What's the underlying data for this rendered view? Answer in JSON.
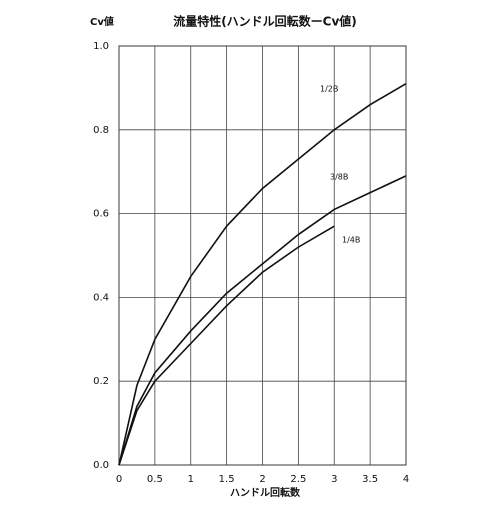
{
  "chart_data": {
    "type": "line",
    "title": "流量特性(ハンドル回転数ーCv値)",
    "y_label": "Cv値",
    "x_label": "ハンドル回転数",
    "x": [
      0,
      0.25,
      0.5,
      1,
      1.5,
      2,
      2.5,
      3,
      3.5,
      4
    ],
    "series": [
      {
        "name": "1/2B",
        "color": "#111111",
        "values": [
          0,
          0.19,
          0.3,
          0.45,
          0.57,
          0.66,
          0.73,
          0.8,
          0.86,
          0.91
        ]
      },
      {
        "name": "3/8B",
        "color": "#111111",
        "values": [
          0,
          0.14,
          0.22,
          0.32,
          0.41,
          0.48,
          0.55,
          0.61,
          0.65,
          0.69
        ]
      },
      {
        "name": "1/4B",
        "color": "#111111",
        "values": [
          0,
          0.13,
          0.2,
          0.29,
          0.38,
          0.46,
          0.52,
          0.57,
          null,
          null
        ]
      }
    ],
    "xlim": [
      0,
      4
    ],
    "xticks": [
      0,
      0.5,
      1,
      1.5,
      2,
      2.5,
      3,
      3.5,
      4
    ],
    "ylim": [
      0,
      1
    ],
    "yticks": [
      {
        "value": 0,
        "label": "0.0"
      },
      0.2,
      0.4,
      0.6,
      0.8,
      {
        "value": 1,
        "label": "1.0"
      }
    ],
    "grid": true
  }
}
